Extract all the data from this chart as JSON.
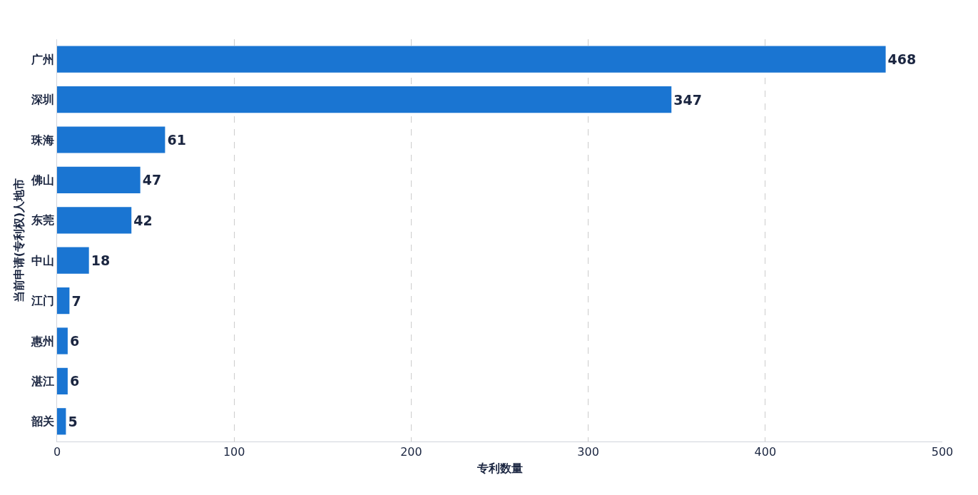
{
  "chart_data": {
    "type": "bar",
    "orientation": "horizontal",
    "xlabel": "专利数量",
    "ylabel": "当前申请(专利权)人地市",
    "categories": [
      "广州",
      "深圳",
      "珠海",
      "佛山",
      "东莞",
      "中山",
      "江门",
      "惠州",
      "湛江",
      "韶关"
    ],
    "values": [
      468,
      347,
      61,
      47,
      42,
      18,
      7,
      6,
      6,
      5
    ],
    "color": "#1a75d2",
    "xlim": [
      0,
      500
    ],
    "xticks": [
      0,
      100,
      200,
      300,
      400,
      500
    ],
    "grid": "x",
    "data_labels": true
  }
}
